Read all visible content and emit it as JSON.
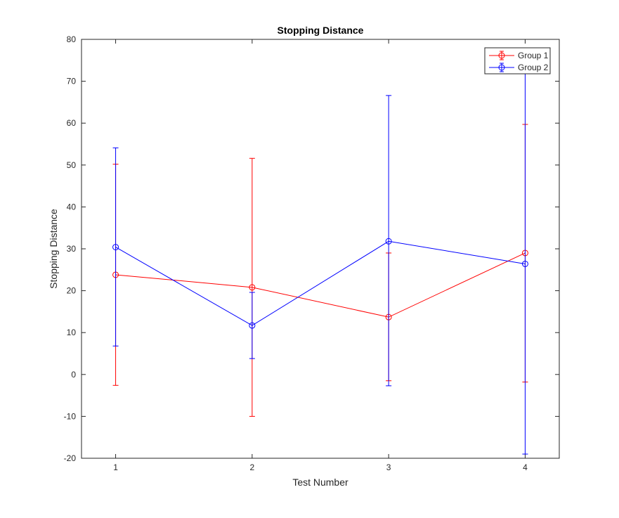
{
  "chart_data": {
    "type": "line",
    "title": "Stopping Distance",
    "xlabel": "Test Number",
    "ylabel": "Stopping Distance",
    "xlim": [
      0.75,
      4.25
    ],
    "ylim": [
      -20,
      80
    ],
    "xticks": [
      1,
      2,
      3,
      4
    ],
    "yticks": [
      -20,
      -10,
      0,
      10,
      20,
      30,
      40,
      50,
      60,
      70,
      80
    ],
    "grid": false,
    "legend_position": "top-right",
    "x": [
      1,
      2,
      3,
      4
    ],
    "series": [
      {
        "name": "Group 1",
        "color": "#ff0000",
        "marker": "circle",
        "values": [
          23.8,
          20.8,
          13.7,
          29.0
        ],
        "err_low": [
          -2.6,
          -10.0,
          -1.5,
          -1.8
        ],
        "err_high": [
          50.2,
          51.6,
          29.0,
          59.7
        ]
      },
      {
        "name": "Group 2",
        "color": "#0000ff",
        "marker": "circle",
        "values": [
          30.4,
          11.7,
          31.8,
          26.4
        ],
        "err_low": [
          6.8,
          3.8,
          -2.7,
          -19.0
        ],
        "err_high": [
          54.1,
          19.6,
          66.6,
          72.0
        ]
      }
    ]
  }
}
